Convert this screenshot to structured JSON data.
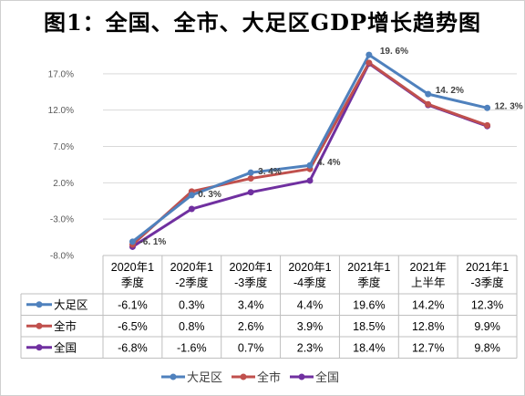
{
  "chart_data": {
    "type": "line",
    "title": "图1：全国、全市、大足区GDP增长趋势图",
    "categories": [
      "2020年1季度",
      "2020年1-2季度",
      "2020年1-3季度",
      "2020年1-4季度",
      "2021年1季度",
      "2021年上半年",
      "2021年1-3季度"
    ],
    "category_lines": [
      [
        "2020年1",
        "季度"
      ],
      [
        "2020年1",
        "-2季度"
      ],
      [
        "2020年1",
        "-3季度"
      ],
      [
        "2020年1",
        "-4季度"
      ],
      [
        "2021年1",
        "季度"
      ],
      [
        "2021年",
        "上半年"
      ],
      [
        "2021年1",
        "-3季度"
      ]
    ],
    "y_ticks": [
      "-8.0%",
      "-3.0%",
      "2.0%",
      "7.0%",
      "12.0%",
      "17.0%"
    ],
    "ylim": [
      -8,
      22
    ],
    "grid": true,
    "legend_position": "bottom",
    "series": [
      {
        "name": "大足区",
        "color": "#4f81bd",
        "values": [
          -6.1,
          0.3,
          3.4,
          4.4,
          19.6,
          14.2,
          12.3
        ],
        "labels": [
          "-6.1%",
          "0.3%",
          "3.4%",
          "4.4%",
          "19.6%",
          "14.2%",
          "12.3%"
        ]
      },
      {
        "name": "全市",
        "color": "#c0504d",
        "values": [
          -6.5,
          0.8,
          2.6,
          3.9,
          18.5,
          12.8,
          9.9
        ],
        "labels": [
          "-6.5%",
          "0.8%",
          "2.6%",
          "3.9%",
          "18.5%",
          "12.8%",
          "9.9%"
        ]
      },
      {
        "name": "全国",
        "color": "#7030a0",
        "values": [
          -6.8,
          -1.6,
          0.7,
          2.3,
          18.4,
          12.7,
          9.8
        ],
        "labels": [
          "-6.8%",
          "-1.6%",
          "0.7%",
          "2.3%",
          "18.4%",
          "12.7%",
          "9.8%"
        ]
      }
    ],
    "data_labels": [
      {
        "series": 0,
        "index": 0,
        "text": "-6. 1%"
      },
      {
        "series": 0,
        "index": 1,
        "text": "0. 3%"
      },
      {
        "series": 0,
        "index": 2,
        "text": "3. 4%"
      },
      {
        "series": 0,
        "index": 3,
        "text": "4. 4%"
      },
      {
        "series": 0,
        "index": 4,
        "text": "19. 6%"
      },
      {
        "series": 0,
        "index": 5,
        "text": "14. 2%"
      },
      {
        "series": 0,
        "index": 6,
        "text": "12. 3%"
      }
    ]
  }
}
